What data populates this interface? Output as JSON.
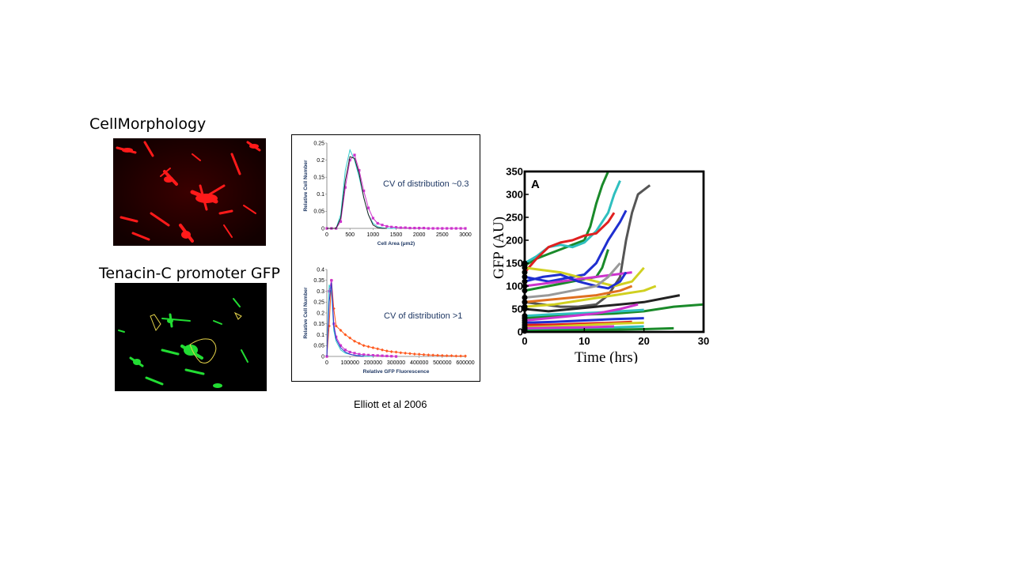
{
  "labels": {
    "morphology": "CellMorphology",
    "gfp": "Tenacin-C promoter GFP"
  },
  "citation": "Elliott et al 2006",
  "colors": {
    "red_cells": "#ff1a1a",
    "green_cells": "#22dd33",
    "annotation": "#1f3864",
    "series_magenta": "#cc33cc",
    "series_cyan": "#33cccc",
    "series_black": "#222222",
    "series_orange": "#ff5a1f",
    "series_blue": "#3333cc"
  },
  "chart_data": [
    {
      "id": "cell-area",
      "type": "line",
      "title": "",
      "annotation": "CV of distribution ~0.3",
      "xlabel": "Cell Area (μm2)",
      "ylabel": "Relative Cell Number",
      "xlim": [
        0,
        3000
      ],
      "ylim": [
        0,
        0.25
      ],
      "xticks": [
        0,
        500,
        1000,
        1500,
        2000,
        2500,
        3000
      ],
      "yticks": [
        0,
        0.05,
        0.1,
        0.15,
        0.2,
        0.25
      ],
      "series": [
        {
          "color": "#cc33cc",
          "marker": "square",
          "x": [
            0,
            100,
            200,
            300,
            400,
            500,
            600,
            700,
            800,
            900,
            1000,
            1100,
            1200,
            1300,
            1400,
            1500,
            1600,
            1700,
            1800,
            1900,
            2000,
            2100,
            2200,
            2300,
            2400,
            2500,
            2600,
            2700,
            2800,
            2900,
            3000
          ],
          "y": [
            0,
            0,
            0,
            0.02,
            0.12,
            0.2,
            0.215,
            0.17,
            0.11,
            0.06,
            0.03,
            0.015,
            0.01,
            0.006,
            0.004,
            0.003,
            0.002,
            0.002,
            0.001,
            0.001,
            0.001,
            0.001,
            0,
            0,
            0,
            0,
            0,
            0,
            0,
            0,
            0
          ]
        },
        {
          "color": "#33cccc",
          "marker": "none",
          "x": [
            0,
            100,
            200,
            300,
            400,
            500,
            600,
            700,
            800,
            900,
            1000,
            1100,
            1200,
            1300,
            1400,
            1500
          ],
          "y": [
            0,
            0,
            0,
            0.04,
            0.17,
            0.23,
            0.2,
            0.15,
            0.09,
            0.04,
            0.015,
            0.005,
            0.002,
            0,
            0,
            0
          ]
        },
        {
          "color": "#222222",
          "marker": "none",
          "x": [
            0,
            100,
            200,
            300,
            400,
            500,
            600,
            700,
            800,
            900,
            1000,
            1100,
            1200,
            1300
          ],
          "y": [
            0,
            0,
            0,
            0.03,
            0.14,
            0.21,
            0.205,
            0.16,
            0.09,
            0.04,
            0.01,
            0.002,
            0,
            0
          ]
        }
      ]
    },
    {
      "id": "gfp-fluorescence",
      "type": "line",
      "title": "",
      "annotation": "CV of distribution >1",
      "xlabel": "Relative GFP Fluorescence",
      "ylabel": "Relative Cell Number",
      "xlim": [
        0,
        600000
      ],
      "ylim": [
        0,
        0.4
      ],
      "xticks": [
        0,
        100000,
        200000,
        300000,
        400000,
        500000,
        600000
      ],
      "yticks": [
        0,
        0.05,
        0.1,
        0.15,
        0.2,
        0.25,
        0.3,
        0.35,
        0.4
      ],
      "series": [
        {
          "color": "#ff5a1f",
          "marker": "diamond",
          "x": [
            0,
            10000,
            20000,
            30000,
            40000,
            60000,
            80000,
            100000,
            120000,
            140000,
            160000,
            180000,
            200000,
            220000,
            240000,
            260000,
            280000,
            300000,
            320000,
            340000,
            360000,
            380000,
            400000,
            420000,
            440000,
            460000,
            480000,
            500000,
            520000,
            540000,
            560000,
            580000,
            600000
          ],
          "y": [
            0,
            0.14,
            0.35,
            0.22,
            0.14,
            0.12,
            0.1,
            0.085,
            0.07,
            0.06,
            0.05,
            0.045,
            0.04,
            0.035,
            0.03,
            0.025,
            0.022,
            0.02,
            0.017,
            0.015,
            0.013,
            0.011,
            0.01,
            0.008,
            0.007,
            0.006,
            0.005,
            0.004,
            0.003,
            0.003,
            0.002,
            0.002,
            0.002
          ]
        },
        {
          "color": "#cc33cc",
          "marker": "square",
          "x": [
            0,
            10000,
            20000,
            30000,
            40000,
            60000,
            80000,
            100000,
            120000,
            140000,
            160000,
            180000,
            200000,
            220000,
            240000,
            260000,
            280000,
            300000
          ],
          "y": [
            0,
            0.3,
            0.35,
            0.15,
            0.09,
            0.05,
            0.03,
            0.02,
            0.015,
            0.01,
            0.008,
            0.006,
            0.005,
            0.004,
            0.003,
            0.002,
            0.001,
            0
          ]
        },
        {
          "color": "#33cccc",
          "marker": "none",
          "x": [
            0,
            10000,
            20000,
            30000,
            40000,
            60000,
            80000,
            100000,
            120000,
            140000,
            160000,
            180000,
            200000
          ],
          "y": [
            0,
            0.33,
            0.3,
            0.12,
            0.07,
            0.03,
            0.015,
            0.01,
            0.006,
            0.004,
            0.002,
            0.001,
            0
          ]
        },
        {
          "color": "#3333cc",
          "marker": "none",
          "x": [
            0,
            10000,
            20000,
            30000,
            40000,
            60000,
            80000,
            100000,
            120000,
            140000,
            160000
          ],
          "y": [
            0,
            0.25,
            0.34,
            0.14,
            0.08,
            0.04,
            0.02,
            0.01,
            0.005,
            0.002,
            0
          ]
        }
      ]
    },
    {
      "id": "gfp-time",
      "type": "line",
      "panel_label": "A",
      "title": "",
      "xlabel": "Time (hrs)",
      "ylabel": "GFP (AU)",
      "xlim": [
        0,
        30
      ],
      "ylim": [
        0,
        350
      ],
      "xticks": [
        0,
        10,
        20,
        30
      ],
      "yticks": [
        0,
        50,
        100,
        150,
        200,
        250,
        300,
        350
      ],
      "series": [
        {
          "color": "#1a8a2a",
          "x": [
            0,
            2,
            4,
            6,
            8,
            10,
            11,
            12,
            13,
            14
          ],
          "y": [
            145,
            160,
            170,
            180,
            190,
            200,
            230,
            280,
            320,
            350
          ]
        },
        {
          "color": "#2fbfbf",
          "x": [
            0,
            2,
            4,
            6,
            8,
            10,
            12,
            14,
            15,
            16
          ],
          "y": [
            150,
            165,
            185,
            190,
            185,
            195,
            220,
            260,
            300,
            330
          ]
        },
        {
          "color": "#e02020",
          "x": [
            0,
            2,
            4,
            6,
            8,
            10,
            12,
            14,
            15
          ],
          "y": [
            130,
            160,
            185,
            195,
            200,
            210,
            215,
            240,
            260
          ]
        },
        {
          "color": "#1f2fd0",
          "x": [
            0,
            2,
            4,
            6,
            8,
            10,
            12,
            14,
            16,
            17
          ],
          "y": [
            120,
            115,
            110,
            115,
            120,
            125,
            150,
            200,
            240,
            265
          ]
        },
        {
          "color": "#555555",
          "x": [
            0,
            3,
            6,
            9,
            12,
            14,
            16,
            17,
            18,
            19,
            20,
            21
          ],
          "y": [
            65,
            60,
            55,
            55,
            60,
            80,
            120,
            200,
            260,
            300,
            310,
            320
          ]
        },
        {
          "color": "#1a8a2a",
          "x": [
            0,
            2,
            4,
            6,
            8,
            10,
            12,
            13,
            14
          ],
          "y": [
            90,
            95,
            100,
            105,
            110,
            115,
            120,
            140,
            180
          ]
        },
        {
          "color": "#d0d020",
          "x": [
            0,
            3,
            6,
            9,
            12,
            15,
            18,
            20
          ],
          "y": [
            140,
            135,
            130,
            120,
            110,
            100,
            110,
            140
          ]
        },
        {
          "color": "#cc33cc",
          "x": [
            0,
            3,
            6,
            9,
            12,
            15,
            18
          ],
          "y": [
            100,
            105,
            110,
            115,
            120,
            125,
            130
          ]
        },
        {
          "color": "#1f2fd0",
          "x": [
            0,
            3,
            6,
            9,
            12,
            14,
            16,
            17
          ],
          "y": [
            110,
            120,
            125,
            110,
            100,
            95,
            110,
            130
          ]
        },
        {
          "color": "#999999",
          "x": [
            0,
            4,
            8,
            12,
            14,
            16
          ],
          "y": [
            75,
            80,
            90,
            100,
            120,
            150
          ]
        },
        {
          "color": "#e07020",
          "x": [
            0,
            4,
            8,
            12,
            16,
            18
          ],
          "y": [
            65,
            70,
            75,
            80,
            90,
            100
          ]
        },
        {
          "color": "#222222",
          "x": [
            0,
            4,
            8,
            12,
            16,
            20,
            24,
            26
          ],
          "y": [
            50,
            45,
            50,
            55,
            60,
            65,
            75,
            80
          ]
        },
        {
          "color": "#1a8a2a",
          "x": [
            0,
            5,
            10,
            15,
            20,
            25,
            30
          ],
          "y": [
            30,
            35,
            38,
            40,
            45,
            55,
            60
          ]
        },
        {
          "color": "#2fbfbf",
          "x": [
            0,
            4,
            8,
            12,
            16,
            20
          ],
          "y": [
            35,
            38,
            40,
            42,
            45,
            48
          ]
        },
        {
          "color": "#cc33cc",
          "x": [
            0,
            4,
            8,
            12,
            16,
            19
          ],
          "y": [
            25,
            30,
            35,
            40,
            50,
            60
          ]
        },
        {
          "color": "#d0d020",
          "x": [
            0,
            5,
            10,
            15,
            20,
            22
          ],
          "y": [
            55,
            60,
            70,
            80,
            90,
            100
          ]
        },
        {
          "color": "#1f2fd0",
          "x": [
            0,
            5,
            10,
            15,
            20
          ],
          "y": [
            20,
            22,
            25,
            28,
            30
          ]
        },
        {
          "color": "#e02020",
          "x": [
            0,
            5,
            10,
            15,
            18
          ],
          "y": [
            15,
            16,
            18,
            20,
            22
          ]
        },
        {
          "color": "#d0d020",
          "x": [
            0,
            5,
            10,
            15,
            20
          ],
          "y": [
            10,
            12,
            15,
            18,
            20
          ]
        },
        {
          "color": "#2fbfbf",
          "x": [
            0,
            5,
            10,
            15,
            20
          ],
          "y": [
            5,
            6,
            8,
            10,
            12
          ]
        },
        {
          "color": "#1a8a2a",
          "x": [
            0,
            5,
            10,
            15,
            20,
            25
          ],
          "y": [
            2,
            3,
            4,
            5,
            6,
            8
          ]
        },
        {
          "color": "#cc33cc",
          "x": [
            0,
            5,
            10,
            15
          ],
          "y": [
            8,
            9,
            10,
            12
          ]
        }
      ]
    }
  ]
}
